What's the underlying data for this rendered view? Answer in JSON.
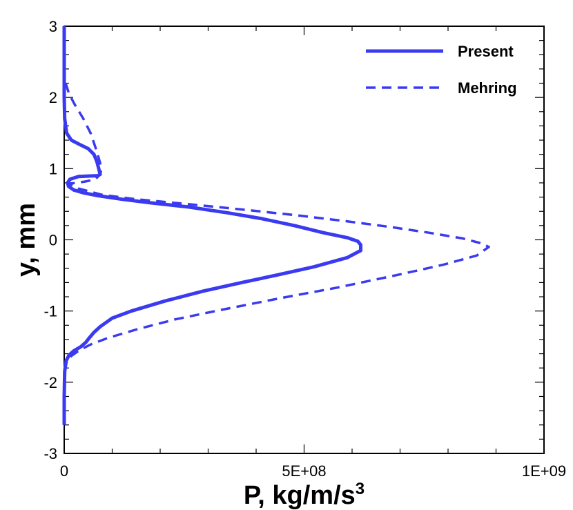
{
  "chart_data": {
    "type": "line",
    "title": "",
    "xlabel": "P, kg/m/s",
    "xlabel_superscript": "3",
    "ylabel": "y, mm",
    "xlim": [
      0,
      1000000000
    ],
    "ylim": [
      -3,
      3
    ],
    "x_ticks": [
      {
        "value": 0,
        "label": "0"
      },
      {
        "value": 500000000,
        "label": "5E+08"
      },
      {
        "value": 1000000000,
        "label": "1E+09"
      }
    ],
    "x_minor_step": 100000000,
    "y_ticks": [
      {
        "value": -3,
        "label": "-3"
      },
      {
        "value": -2,
        "label": "-2"
      },
      {
        "value": -1,
        "label": "-1"
      },
      {
        "value": 0,
        "label": "0"
      },
      {
        "value": 1,
        "label": "1"
      },
      {
        "value": 2,
        "label": "2"
      },
      {
        "value": 3,
        "label": "3"
      }
    ],
    "y_minor_step": 0.2,
    "grid": false,
    "legend_position": "top-right",
    "series": [
      {
        "name": "Present",
        "style": "solid",
        "color": "#3a3af0",
        "points": [
          [
            0,
            3.0
          ],
          [
            0,
            2.6
          ],
          [
            0,
            2.0
          ],
          [
            1000000,
            1.7
          ],
          [
            5000000,
            1.5
          ],
          [
            15000000,
            1.4
          ],
          [
            35000000,
            1.33
          ],
          [
            50000000,
            1.28
          ],
          [
            62000000,
            1.2
          ],
          [
            68000000,
            1.1
          ],
          [
            72000000,
            1.0
          ],
          [
            75000000,
            0.92
          ],
          [
            70000000,
            0.9
          ],
          [
            30000000,
            0.89
          ],
          [
            12000000,
            0.85
          ],
          [
            7000000,
            0.8
          ],
          [
            9000000,
            0.75
          ],
          [
            20000000,
            0.7
          ],
          [
            40000000,
            0.66
          ],
          [
            70000000,
            0.62
          ],
          [
            120000000,
            0.57
          ],
          [
            180000000,
            0.52
          ],
          [
            260000000,
            0.46
          ],
          [
            340000000,
            0.38
          ],
          [
            410000000,
            0.3
          ],
          [
            480000000,
            0.2
          ],
          [
            540000000,
            0.1
          ],
          [
            590000000,
            0.03
          ],
          [
            612000000,
            -0.02
          ],
          [
            618000000,
            -0.07
          ],
          [
            618000000,
            -0.15
          ],
          [
            590000000,
            -0.25
          ],
          [
            520000000,
            -0.38
          ],
          [
            440000000,
            -0.5
          ],
          [
            370000000,
            -0.6
          ],
          [
            290000000,
            -0.72
          ],
          [
            210000000,
            -0.86
          ],
          [
            140000000,
            -1.0
          ],
          [
            100000000,
            -1.1
          ],
          [
            75000000,
            -1.22
          ],
          [
            62000000,
            -1.3
          ],
          [
            52000000,
            -1.38
          ],
          [
            45000000,
            -1.44
          ],
          [
            35000000,
            -1.5
          ],
          [
            20000000,
            -1.56
          ],
          [
            10000000,
            -1.62
          ],
          [
            4000000,
            -1.7
          ],
          [
            1000000,
            -1.85
          ],
          [
            0,
            -2.2
          ],
          [
            0,
            -2.6
          ]
        ]
      },
      {
        "name": "Mehring",
        "style": "dashed",
        "color": "#3a3af0",
        "points": [
          [
            3000000,
            2.2
          ],
          [
            10000000,
            2.05
          ],
          [
            22000000,
            1.9
          ],
          [
            40000000,
            1.7
          ],
          [
            55000000,
            1.5
          ],
          [
            65000000,
            1.3
          ],
          [
            72000000,
            1.15
          ],
          [
            78000000,
            1.0
          ],
          [
            75000000,
            0.92
          ],
          [
            65000000,
            0.85
          ],
          [
            45000000,
            0.82
          ],
          [
            25000000,
            0.8
          ],
          [
            10000000,
            0.79
          ],
          [
            30000000,
            0.72
          ],
          [
            80000000,
            0.63
          ],
          [
            150000000,
            0.57
          ],
          [
            260000000,
            0.5
          ],
          [
            380000000,
            0.42
          ],
          [
            490000000,
            0.34
          ],
          [
            590000000,
            0.26
          ],
          [
            680000000,
            0.18
          ],
          [
            760000000,
            0.1
          ],
          [
            830000000,
            0.02
          ],
          [
            870000000,
            -0.05
          ],
          [
            885000000,
            -0.1
          ],
          [
            860000000,
            -0.22
          ],
          [
            790000000,
            -0.35
          ],
          [
            690000000,
            -0.5
          ],
          [
            570000000,
            -0.67
          ],
          [
            450000000,
            -0.82
          ],
          [
            330000000,
            -0.98
          ],
          [
            230000000,
            -1.12
          ],
          [
            150000000,
            -1.26
          ],
          [
            90000000,
            -1.38
          ],
          [
            55000000,
            -1.47
          ],
          [
            32000000,
            -1.55
          ],
          [
            15000000,
            -1.63
          ],
          [
            6000000,
            -1.7
          ],
          [
            2000000,
            -1.78
          ]
        ]
      }
    ]
  }
}
